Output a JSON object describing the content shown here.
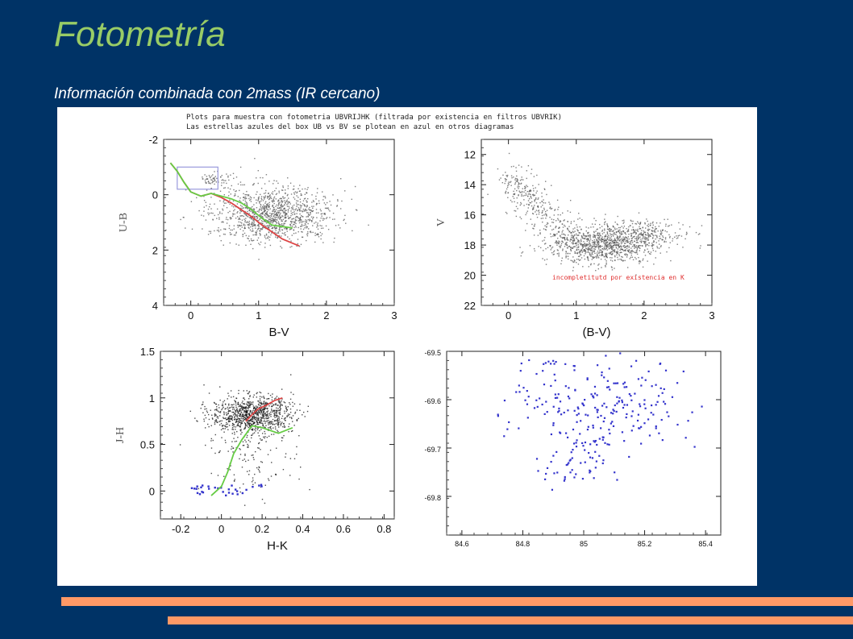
{
  "slide": {
    "title": "Fotometría",
    "subtitle": "Información combinada con 2mass (IR cercano)",
    "accent_color": "#99cc66",
    "background_color": "#003366",
    "stripe_color": "#ff9966"
  },
  "figure_header": [
    "Plots para muestra con fotometria UBVRIJHK (filtrada por existencia en filtros UBVRIK)",
    "Las estrellas azules del box UB vs BV se plotean en azul en otros diagramas"
  ],
  "chart_data": [
    {
      "type": "scatter",
      "xlabel": "B-V",
      "ylabel": "U-B",
      "xlim": [
        -0.4,
        3
      ],
      "ylim": [
        -2,
        4
      ],
      "y_inverted": true,
      "xticks": [
        0,
        1,
        2,
        3
      ],
      "yticks": [
        -2,
        0,
        2,
        4
      ],
      "point_color": "#555555",
      "density_regions": [
        {
          "center": [
            1.2,
            0.7
          ],
          "spread": [
            0.45,
            0.5
          ],
          "count": 1200
        },
        {
          "center": [
            0.35,
            -0.55
          ],
          "spread": [
            0.12,
            0.12
          ],
          "count": 60
        }
      ],
      "box": {
        "x": [
          -0.2,
          0.4
        ],
        "y": [
          -1.0,
          -0.2
        ],
        "color": "#9999dd"
      },
      "series": [
        {
          "color": "#dd4444",
          "x": [
            -0.3,
            -0.2,
            -0.1,
            0.0,
            0.15,
            0.3,
            0.45,
            0.6,
            0.75,
            0.9,
            1.05,
            1.2,
            1.35,
            1.5,
            1.6
          ],
          "y": [
            -1.15,
            -0.85,
            -0.45,
            -0.1,
            0.05,
            -0.05,
            0.1,
            0.3,
            0.55,
            0.8,
            1.1,
            1.35,
            1.6,
            1.75,
            1.85
          ]
        },
        {
          "color": "#66cc44",
          "x": [
            -0.3,
            -0.2,
            -0.1,
            0.0,
            0.15,
            0.3,
            0.45,
            0.6,
            0.75,
            0.9,
            1.05,
            1.2,
            1.35,
            1.5
          ],
          "y": [
            -1.15,
            -0.85,
            -0.45,
            -0.1,
            0.05,
            -0.05,
            0.05,
            0.15,
            0.3,
            0.55,
            0.85,
            1.1,
            1.15,
            1.2
          ]
        }
      ]
    },
    {
      "type": "scatter",
      "xlabel": "(B-V)",
      "ylabel": "V",
      "xlim": [
        -0.4,
        3
      ],
      "ylim": [
        11,
        22
      ],
      "y_inverted": true,
      "xticks": [
        0,
        1,
        2,
        3
      ],
      "yticks": [
        12,
        14,
        16,
        18,
        20,
        22
      ],
      "point_color": "#555555",
      "annotation": "incompletitutd por existencia en K",
      "annotation_color": "#e03030",
      "density_regions": [
        {
          "band": {
            "x": [
              0.0,
              0.9
            ],
            "y": [
              13.5,
              17.5
            ]
          },
          "count": 350
        },
        {
          "center": [
            1.4,
            18.0
          ],
          "spread": [
            0.4,
            0.6
          ],
          "count": 900
        },
        {
          "center": [
            1.9,
            17.3
          ],
          "spread": [
            0.35,
            0.5
          ],
          "count": 300
        }
      ]
    },
    {
      "type": "scatter",
      "xlabel": "H-K",
      "ylabel": "J-H",
      "xlim": [
        -0.3,
        0.85
      ],
      "ylim": [
        -0.3,
        1.5
      ],
      "xticks": [
        -0.2,
        0,
        0.2,
        0.4,
        0.6,
        0.8
      ],
      "yticks": [
        0,
        0.5,
        1,
        1.5
      ],
      "point_color": "#111111",
      "highlight_color": "#3333cc",
      "density_regions": [
        {
          "center": [
            0.15,
            0.82
          ],
          "spread": [
            0.1,
            0.1
          ],
          "count": 900
        },
        {
          "center": [
            0.15,
            0.45
          ],
          "spread": [
            0.12,
            0.25
          ],
          "count": 160
        }
      ],
      "highlighted_points_count": 30,
      "series": [
        {
          "color": "#66cc44",
          "x": [
            -0.05,
            0.0,
            0.03,
            0.06,
            0.1,
            0.15,
            0.2,
            0.28,
            0.35
          ],
          "y": [
            -0.05,
            0.05,
            0.2,
            0.4,
            0.55,
            0.7,
            0.68,
            0.62,
            0.68
          ]
        },
        {
          "color": "#dd4444",
          "x": [
            0.12,
            0.15,
            0.18,
            0.22,
            0.26,
            0.3
          ],
          "y": [
            0.75,
            0.82,
            0.88,
            0.92,
            0.97,
            1.0
          ]
        }
      ]
    },
    {
      "type": "scatter",
      "xlabel": "",
      "ylabel": "",
      "xlim": [
        84.55,
        85.45
      ],
      "ylim": [
        -69.5,
        -69.88
      ],
      "xticks": [
        84.6,
        84.8,
        85,
        85.2,
        85.4
      ],
      "yticks": [
        -69.5,
        -69.6,
        -69.7,
        -69.8
      ],
      "point_color": "#3333cc",
      "density_regions": [
        {
          "center": [
            85.0,
            -69.63
          ],
          "spread": [
            0.12,
            0.05
          ],
          "count": 160
        },
        {
          "center": [
            84.97,
            -69.74
          ],
          "spread": [
            0.05,
            0.025
          ],
          "count": 45
        },
        {
          "center": [
            85.2,
            -69.61
          ],
          "spread": [
            0.09,
            0.05
          ],
          "count": 60
        },
        {
          "center": [
            84.85,
            -69.52
          ],
          "spread": [
            0.04,
            0.015
          ],
          "count": 15
        }
      ]
    }
  ]
}
